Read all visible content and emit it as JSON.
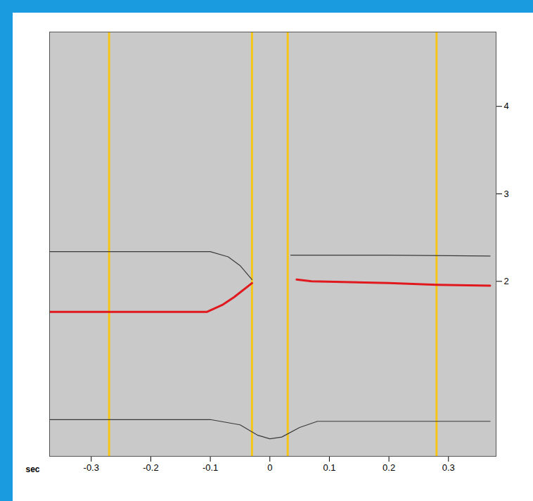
{
  "chart_data": {
    "type": "line",
    "x_label": "sec",
    "xlim": [
      -0.37,
      0.38
    ],
    "xticks": [
      {
        "value": -0.3,
        "label": "-0.3"
      },
      {
        "value": -0.2,
        "label": "-0.2"
      },
      {
        "value": -0.1,
        "label": "-0.1"
      },
      0,
      0.1,
      0.2,
      0.3
    ],
    "ylim": [
      0,
      4.85
    ],
    "yticks": [
      2,
      3,
      4
    ],
    "series": [
      {
        "color": "#e0191f",
        "line_style": "thick",
        "x": [
          -0.37,
          -0.106,
          -0.08,
          -0.06,
          -0.03,
          0.03,
          0.045,
          0.07,
          0.2,
          0.28,
          0.37
        ],
        "values": [
          1.65,
          1.65,
          1.73,
          1.82,
          1.98,
          null,
          2.02,
          2.0,
          1.98,
          1.96,
          1.95
        ]
      },
      {
        "color": "#3a3a3a",
        "line_style": "thin",
        "x": [
          -0.37,
          -0.1,
          -0.07,
          -0.05,
          -0.03,
          0.03,
          0.035,
          0.2,
          0.37
        ],
        "values": [
          2.34,
          2.34,
          2.28,
          2.18,
          2.02,
          null,
          2.3,
          2.3,
          2.29
        ]
      },
      {
        "color": "#3a3a3a",
        "line_style": "thin",
        "x": [
          -0.37,
          -0.1,
          -0.05,
          -0.02,
          0.0,
          0.02,
          0.05,
          0.08,
          0.37
        ],
        "values": [
          0.42,
          0.42,
          0.36,
          0.24,
          0.2,
          0.22,
          0.33,
          0.4,
          0.4
        ]
      }
    ],
    "vertical_lines": {
      "color": "#f5c518",
      "x": [
        -0.27,
        -0.03,
        0.03,
        0.28
      ]
    }
  }
}
